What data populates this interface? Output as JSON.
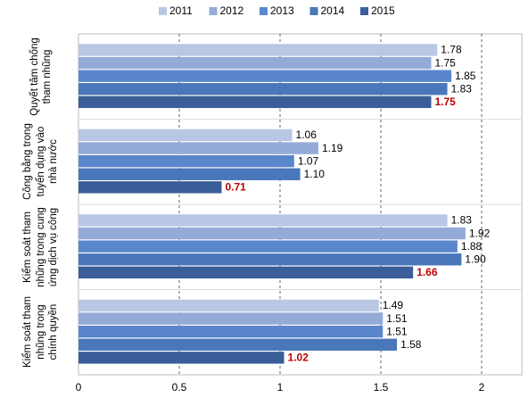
{
  "chart_data": {
    "type": "hbar",
    "categories": [
      "Quyết tâm chống tham nhũng",
      "Công bằng trong tuyển dụng vào nhà nước",
      "Kiểm soát tham nhũng trong cung ứng dịch vụ công",
      "Kiểm soát tham nhũng trong chính quyền"
    ],
    "series": [
      {
        "name": "2011",
        "color": "#b9c7e4",
        "values": [
          1.78,
          1.06,
          1.83,
          1.49
        ],
        "value_labels": [
          "1.78",
          "1.06",
          "1.83",
          "1.49"
        ]
      },
      {
        "name": "2012",
        "color": "#94abd8",
        "values": [
          1.75,
          1.19,
          1.92,
          1.51
        ],
        "value_labels": [
          "1.75",
          "1.19",
          "1.92",
          "1.51"
        ]
      },
      {
        "name": "2013",
        "color": "#5a87cb",
        "values": [
          1.85,
          1.07,
          1.88,
          1.51
        ],
        "value_labels": [
          "1.85",
          "1.07",
          "1.88",
          "1.51"
        ]
      },
      {
        "name": "2014",
        "color": "#4a77ba",
        "values": [
          1.83,
          1.1,
          1.9,
          1.58
        ],
        "value_labels": [
          "1.83",
          "1.10",
          "1.90",
          "1.58"
        ]
      },
      {
        "name": "2015",
        "color": "#3b5e98",
        "values": [
          1.75,
          0.71,
          1.66,
          1.02
        ],
        "value_labels": [
          "1.75",
          "0.71",
          "1.66",
          "1.02"
        ],
        "label_color": "#c00000"
      }
    ],
    "xlim": [
      0,
      2.2
    ],
    "xticks": [
      0,
      0.5,
      1,
      1.5,
      2
    ],
    "grid": true,
    "legend": "top"
  }
}
